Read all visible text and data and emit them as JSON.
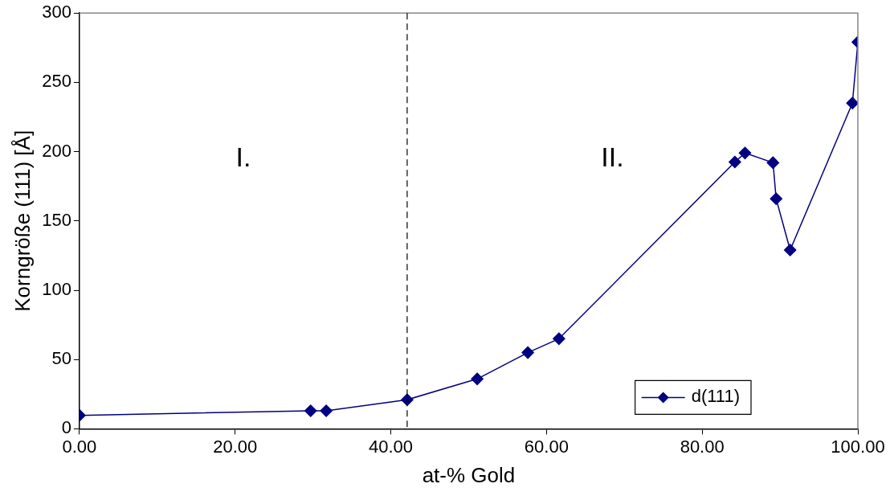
{
  "chart_data": {
    "type": "line",
    "xlabel": "at-% Gold",
    "ylabel": "Korngröße (111) [Å]",
    "x": [
      0,
      29.7,
      31.7,
      42.1,
      51.1,
      57.6,
      61.6,
      84.2,
      85.5,
      89.1,
      89.5,
      91.3,
      99.3,
      100
    ],
    "series": [
      {
        "name": "d(111)",
        "color": "#000080",
        "values": [
          9.7,
          13,
          13,
          21,
          36,
          55,
          65,
          192.5,
          199,
          192,
          166,
          129,
          235,
          279
        ]
      }
    ],
    "xlim": [
      0,
      100
    ],
    "xticks": [
      {
        "value": 0,
        "label": "0.00"
      },
      {
        "value": 20,
        "label": "20.00"
      },
      {
        "value": 40,
        "label": "40.00"
      },
      {
        "value": 60,
        "label": "60.00"
      },
      {
        "value": 80,
        "label": "80.00"
      },
      {
        "value": 100,
        "label": "100.00"
      }
    ],
    "ylim": [
      0,
      300
    ],
    "yticks": [
      0,
      50,
      100,
      150,
      200,
      250,
      300
    ],
    "ref_lines": [
      {
        "axis": "x",
        "value": 42.1,
        "line_style": "dashed",
        "color": "#000000"
      }
    ],
    "annotations": [
      "I.",
      "II."
    ],
    "grid": false,
    "legend": "bottom right",
    "marker": "diamond",
    "line_style": "solid"
  }
}
